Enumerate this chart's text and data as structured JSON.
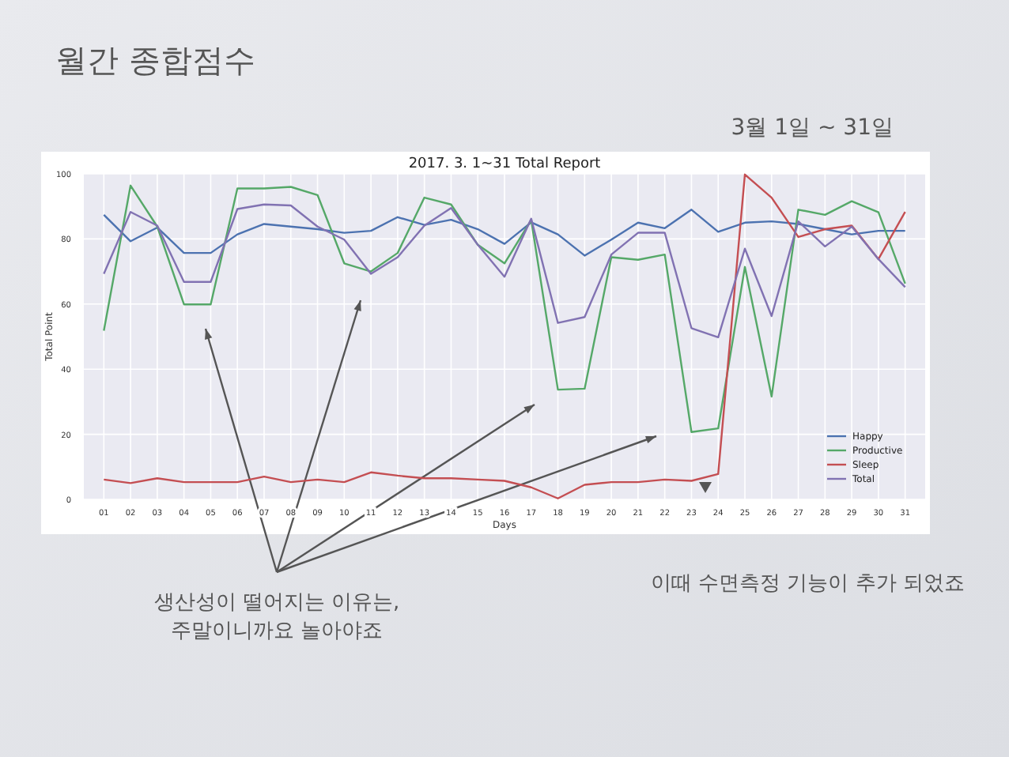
{
  "chart_data": {
    "type": "line",
    "title": "월간 종합점수",
    "subtitle": "3월 1일 ~ 31일",
    "xlabel": "Days",
    "ylabel": "Total Point",
    "annotations": [
      "2017. 3. 1~31 Total Report",
      "생산성이 떨어지는 이유는,\n주말이니까요 놀아야죠",
      "이때 수면측정 기능이 추가 되었죠"
    ],
    "categories": [
      "01",
      "02",
      "03",
      "04",
      "05",
      "06",
      "07",
      "08",
      "09",
      "10",
      "11",
      "12",
      "13",
      "14",
      "15",
      "16",
      "17",
      "18",
      "19",
      "20",
      "21",
      "22",
      "23",
      "24",
      "25",
      "26",
      "27",
      "28",
      "29",
      "30",
      "31"
    ],
    "series": [
      {
        "name": "Happy",
        "color": "#4c72b0",
        "values": [
          87.4,
          79.3,
          83.5,
          75.7,
          75.7,
          81.4,
          84.6,
          83.8,
          83,
          81.9,
          82.5,
          86.7,
          84.3,
          85.9,
          83,
          78.5,
          85.1,
          81.4,
          74.9,
          79.8,
          85,
          83.3,
          89,
          82.2,
          85,
          85.4,
          84.6,
          83,
          81.4,
          82.5,
          82.5
        ]
      },
      {
        "name": "Productive",
        "color": "#55a868",
        "values": [
          51.8,
          96.4,
          83.8,
          59.9,
          59.9,
          95.5,
          95.5,
          96,
          93.5,
          72.5,
          70,
          75.7,
          92.7,
          90.6,
          78.2,
          72.5,
          85.8,
          33.7,
          34,
          74.4,
          73.6,
          75.2,
          20.7,
          21.8,
          71.4,
          31.6,
          89,
          87.4,
          91.6,
          88.2,
          66.3
        ]
      },
      {
        "name": "Sleep",
        "color": "#c44e52",
        "values": [
          6.1,
          5,
          6.5,
          5.3,
          5.3,
          5.3,
          7,
          5.3,
          6.1,
          5.3,
          8.3,
          7.3,
          6.5,
          6.5,
          6.1,
          5.7,
          3.7,
          0.3,
          4.5,
          5.3,
          5.3,
          6.1,
          5.7,
          7.8,
          99.8,
          92.7,
          80.6,
          83,
          84.1,
          73.8,
          88.3
        ]
      },
      {
        "name": "Total",
        "color": "#8172b2",
        "values": [
          69.3,
          88.3,
          84.1,
          66.8,
          66.8,
          89.2,
          90.6,
          90.3,
          83.8,
          79.8,
          69.3,
          74.4,
          84.1,
          89.5,
          78.2,
          68.4,
          86.2,
          54.2,
          56,
          75.2,
          81.9,
          81.9,
          52.6,
          49.8,
          77,
          56.3,
          85.4,
          77.7,
          83.8,
          73.8,
          65.2
        ]
      }
    ],
    "ylim": [
      0,
      100
    ],
    "yticks": [
      0,
      20,
      40,
      60,
      80,
      100
    ],
    "grid": true,
    "legend": "bottom right"
  }
}
